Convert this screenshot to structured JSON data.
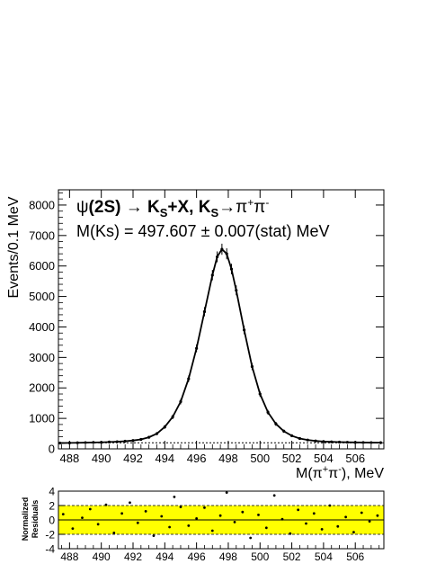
{
  "chart_data": [
    {
      "type": "scatter",
      "annotation": {
        "line1": {
          "psi": "ψ",
          "decay": "(2S) → K",
          "s1": "S",
          "mid": "+X, K",
          "s2": "S",
          "arrow": "→π",
          "plus": "+",
          "pi2": "π",
          "minus": "-"
        },
        "line2": "M(Ks) = 497.607 ± 0.007(stat) MeV"
      },
      "xlabel": {
        "prefix": "M(π",
        "sup1": "+",
        "mid": "π",
        "sup2": "-",
        "suffix": "), MeV"
      },
      "ylabel": "Events/0.1 MeV",
      "xlim": [
        487.3,
        507.8
      ],
      "ylim": [
        0,
        8500
      ],
      "x_ticks": [
        "488",
        "490",
        "492",
        "494",
        "496",
        "498",
        "500",
        "502",
        "504",
        "506"
      ],
      "y_ticks": [
        "0",
        "1000",
        "2000",
        "3000",
        "4000",
        "5000",
        "6000",
        "7000",
        "8000"
      ],
      "background_level": 200,
      "peak_mass": 497.607,
      "peak_height": 6550,
      "points": [
        [
          487.4,
          190
        ],
        [
          488.0,
          195
        ],
        [
          488.5,
          200
        ],
        [
          489.0,
          205
        ],
        [
          489.5,
          210
        ],
        [
          490.0,
          215
        ],
        [
          490.5,
          225
        ],
        [
          491.0,
          235
        ],
        [
          491.5,
          250
        ],
        [
          492.0,
          275
        ],
        [
          492.5,
          310
        ],
        [
          493.0,
          380
        ],
        [
          493.5,
          500
        ],
        [
          494.0,
          720
        ],
        [
          494.5,
          1050
        ],
        [
          495.0,
          1550
        ],
        [
          495.5,
          2300
        ],
        [
          496.0,
          3300
        ],
        [
          496.5,
          4500
        ],
        [
          497.0,
          5700
        ],
        [
          497.3,
          6300
        ],
        [
          497.6,
          6550
        ],
        [
          497.9,
          6400
        ],
        [
          498.2,
          5900
        ],
        [
          498.5,
          5200
        ],
        [
          499.0,
          3900
        ],
        [
          499.5,
          2700
        ],
        [
          500.0,
          1800
        ],
        [
          500.5,
          1200
        ],
        [
          501.0,
          820
        ],
        [
          501.5,
          580
        ],
        [
          502.0,
          430
        ],
        [
          502.5,
          340
        ],
        [
          503.0,
          290
        ],
        [
          503.5,
          260
        ],
        [
          504.0,
          240
        ],
        [
          504.5,
          230
        ],
        [
          505.0,
          222
        ],
        [
          505.5,
          216
        ],
        [
          506.0,
          212
        ],
        [
          506.5,
          208
        ],
        [
          507.0,
          205
        ],
        [
          507.6,
          202
        ]
      ]
    },
    {
      "type": "scatter",
      "ylabel_line1": "Normalized",
      "ylabel_line2": "Residuals",
      "xlim": [
        487.3,
        507.8
      ],
      "ylim": [
        -4,
        4
      ],
      "band": [
        -2,
        2
      ],
      "band_color": "#ffff00",
      "x_ticks": [
        "488",
        "490",
        "492",
        "494",
        "496",
        "498",
        "500",
        "502",
        "504",
        "506"
      ],
      "y_ticks": [
        "4",
        "2",
        "0",
        "-2",
        "-4"
      ],
      "points": [
        [
          487.6,
          0.8
        ],
        [
          488.2,
          -1.2
        ],
        [
          488.8,
          0.3
        ],
        [
          489.3,
          1.5
        ],
        [
          489.8,
          -0.6
        ],
        [
          490.3,
          2.1
        ],
        [
          490.8,
          -1.8
        ],
        [
          491.3,
          0.9
        ],
        [
          491.8,
          2.4
        ],
        [
          492.3,
          -0.4
        ],
        [
          492.8,
          1.2
        ],
        [
          493.3,
          -2.2
        ],
        [
          493.8,
          0.5
        ],
        [
          494.3,
          -1.0
        ],
        [
          494.6,
          3.2
        ],
        [
          495.0,
          1.8
        ],
        [
          495.5,
          -0.8
        ],
        [
          496.0,
          0.2
        ],
        [
          496.5,
          1.7
        ],
        [
          497.0,
          -1.5
        ],
        [
          497.5,
          0.6
        ],
        [
          497.9,
          3.8
        ],
        [
          498.4,
          -0.3
        ],
        [
          498.9,
          1.1
        ],
        [
          499.4,
          -2.5
        ],
        [
          499.9,
          0.7
        ],
        [
          500.4,
          -1.1
        ],
        [
          500.9,
          3.4
        ],
        [
          501.4,
          0.1
        ],
        [
          501.9,
          -1.9
        ],
        [
          502.4,
          1.4
        ],
        [
          502.9,
          -0.5
        ],
        [
          503.4,
          0.9
        ],
        [
          503.9,
          -1.3
        ],
        [
          504.4,
          2.0
        ],
        [
          504.9,
          -0.9
        ],
        [
          505.4,
          0.4
        ],
        [
          505.9,
          -1.7
        ],
        [
          506.4,
          1.0
        ],
        [
          506.9,
          -0.2
        ],
        [
          507.4,
          0.6
        ]
      ]
    }
  ]
}
